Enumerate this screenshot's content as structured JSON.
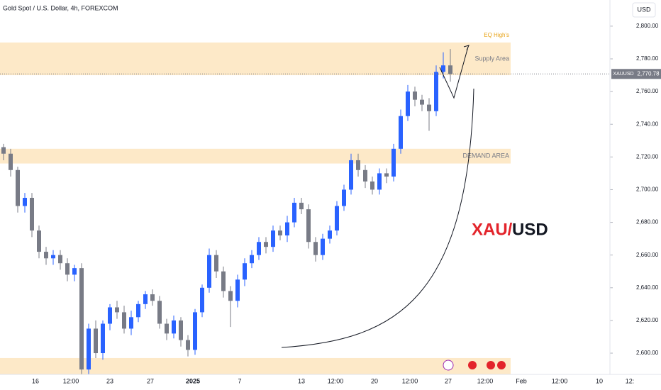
{
  "chart_data": {
    "type": "candlestick",
    "title": "Gold Spot / U.S. Dollar, 4h, FOREXCOM",
    "currency": "USD",
    "symbol": "XAUUSD",
    "last_price": {
      "value": 2770.78,
      "label": "2,770.78"
    },
    "annotations": {
      "eq": "EQ High's",
      "pair_a": "XAU/",
      "pair_b": "USD"
    },
    "zones": [
      {
        "name": "Supply Area",
        "low": 2770,
        "high": 2790
      },
      {
        "name": "DEMAND AREA",
        "low": 2716,
        "high": 2725
      },
      {
        "low": 2587,
        "high": 2597
      }
    ],
    "up_color": "#2962ff",
    "down_color": "#787b86",
    "zone_color": "#fde9c8",
    "ylim": [
      2587,
      2816
    ],
    "yticks": [
      {
        "value": 2600,
        "label": "2,600.00"
      },
      {
        "value": 2620,
        "label": "2,620.00"
      },
      {
        "value": 2640,
        "label": "2,640.00"
      },
      {
        "value": 2660,
        "label": "2,660.00"
      },
      {
        "value": 2680,
        "label": "2,680.00"
      },
      {
        "value": 2700,
        "label": "2,700.00"
      },
      {
        "value": 2720,
        "label": "2,720.00"
      },
      {
        "value": 2740,
        "label": "2,740.00"
      },
      {
        "value": 2760,
        "label": "2,760.00"
      },
      {
        "value": 2780,
        "label": "2,780.00"
      },
      {
        "value": 2800,
        "label": "2,800.00"
      }
    ],
    "xtick_labels": [
      "16",
      "12:00",
      "23",
      "27",
      "2025",
      "7",
      "13",
      "12:00",
      "20",
      "12:00",
      "27",
      "12:00",
      "Feb",
      "12:00",
      "10",
      "12:"
    ],
    "open": [
      2726,
      2722,
      2712,
      2690,
      2695,
      2675,
      2662,
      2658,
      2660,
      2655,
      2648,
      2652,
      2590,
      2615,
      2600,
      2618,
      2628,
      2625,
      2615,
      2622,
      2630,
      2636,
      2632,
      2618,
      2612,
      2620,
      2608,
      2602,
      2625,
      2640,
      2660,
      2650,
      2638,
      2632,
      2645,
      2655,
      2660,
      2668,
      2665,
      2675,
      2672,
      2680,
      2692,
      2688,
      2668,
      2660,
      2670,
      2675,
      2690,
      2700,
      2718,
      2712,
      2705,
      2700,
      2710,
      2708,
      2725,
      2745,
      2760,
      2755,
      2752,
      2748,
      2772,
      2776
    ],
    "high": [
      2728,
      2725,
      2714,
      2698,
      2698,
      2678,
      2665,
      2663,
      2663,
      2658,
      2654,
      2655,
      2618,
      2620,
      2620,
      2630,
      2632,
      2629,
      2626,
      2632,
      2638,
      2639,
      2635,
      2621,
      2623,
      2622,
      2611,
      2627,
      2642,
      2664,
      2663,
      2653,
      2641,
      2648,
      2658,
      2663,
      2671,
      2671,
      2678,
      2678,
      2684,
      2695,
      2695,
      2691,
      2671,
      2673,
      2678,
      2693,
      2703,
      2722,
      2722,
      2715,
      2708,
      2713,
      2713,
      2728,
      2749,
      2764,
      2763,
      2758,
      2756,
      2776,
      2784,
      2786
    ],
    "low": [
      2718,
      2708,
      2686,
      2686,
      2671,
      2658,
      2654,
      2654,
      2651,
      2644,
      2644,
      2587,
      2587,
      2597,
      2596,
      2614,
      2621,
      2612,
      2611,
      2619,
      2627,
      2629,
      2615,
      2608,
      2609,
      2604,
      2598,
      2599,
      2622,
      2637,
      2646,
      2634,
      2616,
      2628,
      2641,
      2652,
      2657,
      2661,
      2662,
      2669,
      2668,
      2677,
      2685,
      2664,
      2656,
      2657,
      2667,
      2672,
      2687,
      2697,
      2708,
      2701,
      2697,
      2697,
      2704,
      2705,
      2722,
      2742,
      2751,
      2748,
      2736,
      2745,
      2768,
      2766
    ],
    "close": [
      2722,
      2712,
      2690,
      2695,
      2675,
      2662,
      2658,
      2660,
      2655,
      2648,
      2652,
      2590,
      2615,
      2600,
      2618,
      2628,
      2625,
      2615,
      2622,
      2630,
      2636,
      2632,
      2618,
      2612,
      2620,
      2608,
      2602,
      2625,
      2640,
      2660,
      2650,
      2638,
      2632,
      2645,
      2655,
      2660,
      2668,
      2665,
      2675,
      2672,
      2680,
      2692,
      2688,
      2668,
      2660,
      2670,
      2675,
      2690,
      2700,
      2718,
      2712,
      2705,
      2700,
      2710,
      2708,
      2725,
      2745,
      2760,
      2755,
      2752,
      2748,
      2772,
      2776,
      2770.78
    ]
  }
}
